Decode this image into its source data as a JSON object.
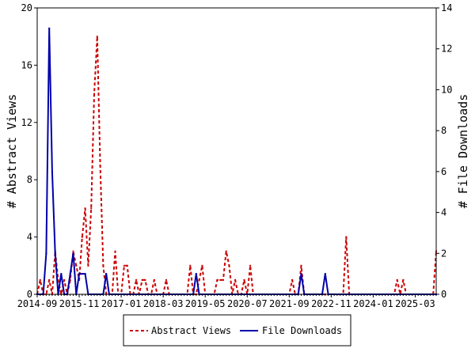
{
  "chart_data": {
    "type": "line",
    "x_tick_labels": [
      "2014-09",
      "2015-11",
      "2017-01",
      "2018-03",
      "2019-05",
      "2020-07",
      "2021-09",
      "2022-11",
      "2024-01",
      "2025-03"
    ],
    "y_left": {
      "label": "# Abstract Views",
      "lim": [
        0,
        20
      ],
      "ticks": [
        "0",
        "4",
        "8",
        "12",
        "16",
        "20"
      ]
    },
    "y_right": {
      "label": "# File Downloads",
      "lim": [
        0,
        14
      ],
      "ticks": [
        "0",
        "2",
        "4",
        "6",
        "8",
        "10",
        "12",
        "14"
      ]
    },
    "x_lim": [
      0,
      133
    ],
    "series": [
      {
        "name": "Abstract Views",
        "axis": "left",
        "color": "#cc0000",
        "dashed": true,
        "points": [
          [
            0,
            0
          ],
          [
            1,
            1
          ],
          [
            2,
            0
          ],
          [
            3,
            0
          ],
          [
            4,
            1
          ],
          [
            5,
            0
          ],
          [
            6,
            3
          ],
          [
            7,
            1
          ],
          [
            8,
            0
          ],
          [
            9,
            1
          ],
          [
            10,
            0
          ],
          [
            11,
            1
          ],
          [
            12,
            3
          ],
          [
            13,
            2
          ],
          [
            14,
            1
          ],
          [
            15,
            4
          ],
          [
            16,
            6
          ],
          [
            17,
            2
          ],
          [
            18,
            6
          ],
          [
            19,
            14
          ],
          [
            20,
            18
          ],
          [
            21,
            9
          ],
          [
            22,
            2
          ],
          [
            23,
            0
          ],
          [
            24,
            0
          ],
          [
            25,
            0
          ],
          [
            26,
            3
          ],
          [
            27,
            0
          ],
          [
            28,
            0
          ],
          [
            29,
            2
          ],
          [
            30,
            2
          ],
          [
            31,
            0
          ],
          [
            32,
            0
          ],
          [
            33,
            1
          ],
          [
            34,
            0
          ],
          [
            35,
            1
          ],
          [
            36,
            1
          ],
          [
            37,
            0
          ],
          [
            38,
            0
          ],
          [
            39,
            1
          ],
          [
            40,
            0
          ],
          [
            41,
            0
          ],
          [
            42,
            0
          ],
          [
            43,
            1
          ],
          [
            44,
            0
          ],
          [
            45,
            0
          ],
          [
            46,
            0
          ],
          [
            47,
            0
          ],
          [
            48,
            0
          ],
          [
            49,
            0
          ],
          [
            50,
            0
          ],
          [
            51,
            2
          ],
          [
            52,
            0
          ],
          [
            53,
            0
          ],
          [
            54,
            1
          ],
          [
            55,
            2
          ],
          [
            56,
            0
          ],
          [
            57,
            0
          ],
          [
            58,
            0
          ],
          [
            59,
            0
          ],
          [
            60,
            1
          ],
          [
            61,
            1
          ],
          [
            62,
            1
          ],
          [
            63,
            3
          ],
          [
            64,
            2
          ],
          [
            65,
            0
          ],
          [
            66,
            1
          ],
          [
            67,
            0
          ],
          [
            68,
            0
          ],
          [
            69,
            1
          ],
          [
            70,
            0
          ],
          [
            71,
            2
          ],
          [
            72,
            0
          ],
          [
            73,
            0
          ],
          [
            74,
            0
          ],
          [
            75,
            0
          ],
          [
            76,
            0
          ],
          [
            77,
            0
          ],
          [
            78,
            0
          ],
          [
            79,
            0
          ],
          [
            80,
            0
          ],
          [
            81,
            0
          ],
          [
            82,
            0
          ],
          [
            83,
            0
          ],
          [
            84,
            0
          ],
          [
            85,
            1
          ],
          [
            86,
            0
          ],
          [
            87,
            0
          ],
          [
            88,
            2
          ],
          [
            89,
            0
          ],
          [
            90,
            0
          ],
          [
            91,
            0
          ],
          [
            92,
            0
          ],
          [
            93,
            0
          ],
          [
            94,
            0
          ],
          [
            95,
            0
          ],
          [
            96,
            0
          ],
          [
            97,
            0
          ],
          [
            98,
            0
          ],
          [
            99,
            0
          ],
          [
            100,
            0
          ],
          [
            101,
            0
          ],
          [
            102,
            0
          ],
          [
            103,
            4
          ],
          [
            104,
            0
          ],
          [
            105,
            0
          ],
          [
            106,
            0
          ],
          [
            107,
            0
          ],
          [
            108,
            0
          ],
          [
            109,
            0
          ],
          [
            110,
            0
          ],
          [
            111,
            0
          ],
          [
            112,
            0
          ],
          [
            113,
            0
          ],
          [
            114,
            0
          ],
          [
            115,
            0
          ],
          [
            116,
            0
          ],
          [
            117,
            0
          ],
          [
            118,
            0
          ],
          [
            119,
            0
          ],
          [
            120,
            1
          ],
          [
            121,
            0
          ],
          [
            122,
            1
          ],
          [
            123,
            0
          ],
          [
            124,
            0
          ],
          [
            125,
            0
          ],
          [
            126,
            0
          ],
          [
            127,
            0
          ],
          [
            128,
            0
          ],
          [
            129,
            0
          ],
          [
            130,
            0
          ],
          [
            131,
            0
          ],
          [
            132,
            0
          ],
          [
            133,
            3
          ]
        ]
      },
      {
        "name": "File Downloads",
        "axis": "right",
        "color": "#0000aa",
        "dashed": false,
        "points": [
          [
            0,
            0
          ],
          [
            1,
            0
          ],
          [
            2,
            0
          ],
          [
            3,
            2
          ],
          [
            4,
            13
          ],
          [
            5,
            6
          ],
          [
            6,
            2
          ],
          [
            7,
            0
          ],
          [
            8,
            1
          ],
          [
            9,
            0
          ],
          [
            10,
            0
          ],
          [
            11,
            1
          ],
          [
            12,
            2
          ],
          [
            13,
            0
          ],
          [
            14,
            1
          ],
          [
            15,
            1
          ],
          [
            16,
            1
          ],
          [
            17,
            0
          ],
          [
            18,
            0
          ],
          [
            19,
            0
          ],
          [
            20,
            0
          ],
          [
            21,
            0
          ],
          [
            22,
            0
          ],
          [
            23,
            1
          ],
          [
            24,
            0
          ],
          [
            25,
            0
          ],
          [
            26,
            0
          ],
          [
            27,
            0
          ],
          [
            28,
            0
          ],
          [
            29,
            0
          ],
          [
            30,
            0
          ],
          [
            31,
            0
          ],
          [
            32,
            0
          ],
          [
            33,
            0
          ],
          [
            34,
            0
          ],
          [
            35,
            0
          ],
          [
            36,
            0
          ],
          [
            37,
            0
          ],
          [
            38,
            0
          ],
          [
            39,
            0
          ],
          [
            40,
            0
          ],
          [
            41,
            0
          ],
          [
            42,
            0
          ],
          [
            43,
            0
          ],
          [
            44,
            0
          ],
          [
            45,
            0
          ],
          [
            46,
            0
          ],
          [
            47,
            0
          ],
          [
            48,
            0
          ],
          [
            49,
            0
          ],
          [
            50,
            0
          ],
          [
            51,
            0
          ],
          [
            52,
            0
          ],
          [
            53,
            1
          ],
          [
            54,
            0
          ],
          [
            55,
            0
          ],
          [
            56,
            0
          ],
          [
            57,
            0
          ],
          [
            58,
            0
          ],
          [
            59,
            0
          ],
          [
            60,
            0
          ],
          [
            61,
            0
          ],
          [
            62,
            0
          ],
          [
            63,
            0
          ],
          [
            64,
            0
          ],
          [
            65,
            0
          ],
          [
            66,
            0
          ],
          [
            67,
            0
          ],
          [
            68,
            0
          ],
          [
            69,
            0
          ],
          [
            70,
            0
          ],
          [
            71,
            0
          ],
          [
            72,
            0
          ],
          [
            73,
            0
          ],
          [
            74,
            0
          ],
          [
            75,
            0
          ],
          [
            76,
            0
          ],
          [
            77,
            0
          ],
          [
            78,
            0
          ],
          [
            79,
            0
          ],
          [
            80,
            0
          ],
          [
            81,
            0
          ],
          [
            82,
            0
          ],
          [
            83,
            0
          ],
          [
            84,
            0
          ],
          [
            85,
            0
          ],
          [
            86,
            0
          ],
          [
            87,
            0
          ],
          [
            88,
            1
          ],
          [
            89,
            0
          ],
          [
            90,
            0
          ],
          [
            91,
            0
          ],
          [
            92,
            0
          ],
          [
            93,
            0
          ],
          [
            94,
            0
          ],
          [
            95,
            0
          ],
          [
            96,
            1
          ],
          [
            97,
            0
          ],
          [
            98,
            0
          ],
          [
            99,
            0
          ],
          [
            100,
            0
          ],
          [
            101,
            0
          ],
          [
            102,
            0
          ],
          [
            103,
            0
          ],
          [
            104,
            0
          ],
          [
            105,
            0
          ],
          [
            106,
            0
          ],
          [
            107,
            0
          ],
          [
            108,
            0
          ],
          [
            109,
            0
          ],
          [
            110,
            0
          ],
          [
            111,
            0
          ],
          [
            112,
            0
          ],
          [
            113,
            0
          ],
          [
            114,
            0
          ],
          [
            115,
            0
          ],
          [
            116,
            0
          ],
          [
            117,
            0
          ],
          [
            118,
            0
          ],
          [
            119,
            0
          ],
          [
            120,
            0
          ],
          [
            121,
            0
          ],
          [
            122,
            0
          ],
          [
            123,
            0
          ],
          [
            124,
            0
          ],
          [
            125,
            0
          ],
          [
            126,
            0
          ],
          [
            127,
            0
          ],
          [
            128,
            0
          ],
          [
            129,
            0
          ],
          [
            130,
            0
          ],
          [
            131,
            0
          ],
          [
            132,
            0
          ],
          [
            133,
            0
          ]
        ]
      }
    ],
    "legend": {
      "placement": "bottom-center",
      "items": [
        "Abstract Views",
        "File Downloads"
      ]
    },
    "grid": false
  }
}
